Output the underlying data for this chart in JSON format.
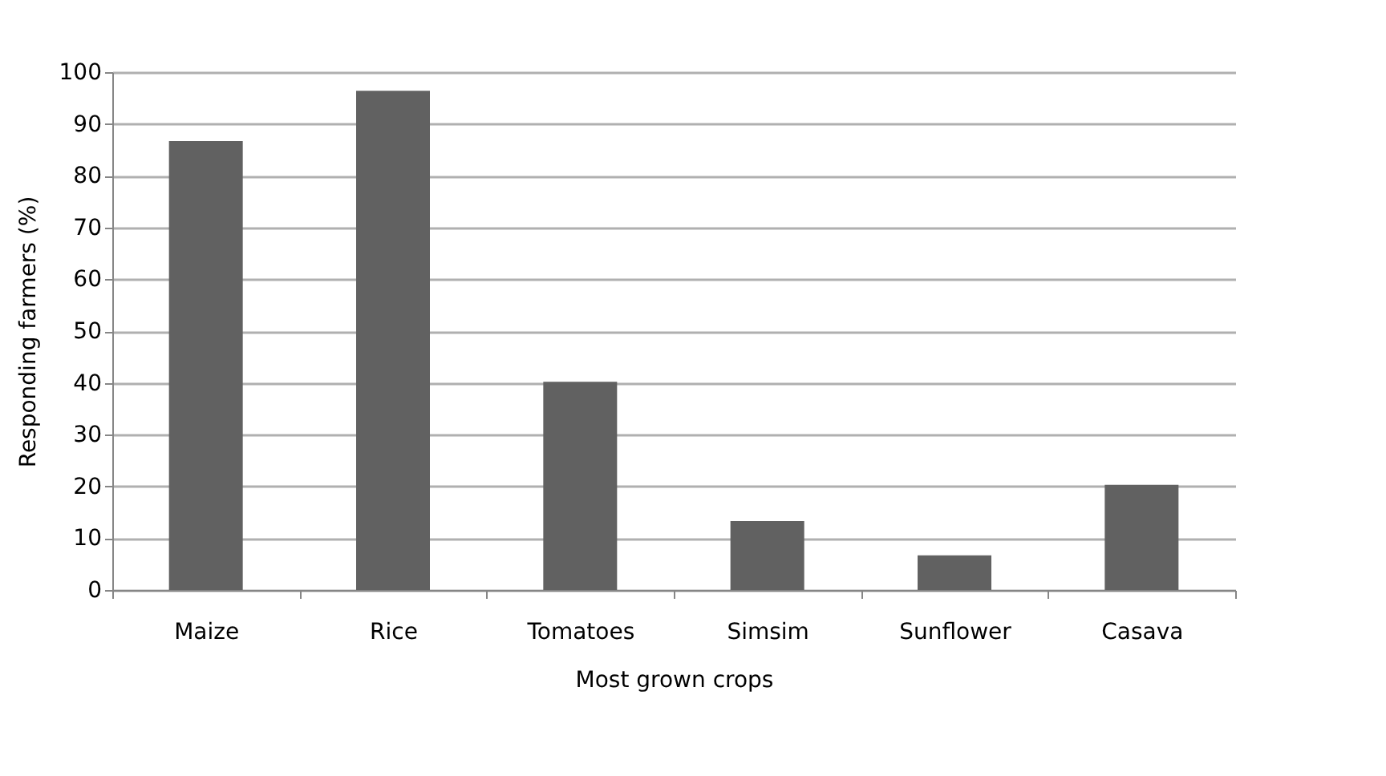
{
  "chart_data": {
    "type": "bar",
    "xlabel": "Most grown crops",
    "ylabel": "Responding farmers (%)",
    "categories": [
      "Maize",
      "Rice",
      "Tomatoes",
      "Simsim",
      "Sunflower",
      "Casava"
    ],
    "values": [
      86.7,
      96.4,
      40.2,
      13.3,
      6.7,
      20.3
    ],
    "color": "#616161",
    "ylim": [
      0,
      100
    ],
    "yticks": [
      0,
      10,
      20,
      30,
      40,
      50,
      60,
      70,
      80,
      90,
      100
    ],
    "grid": "y"
  }
}
